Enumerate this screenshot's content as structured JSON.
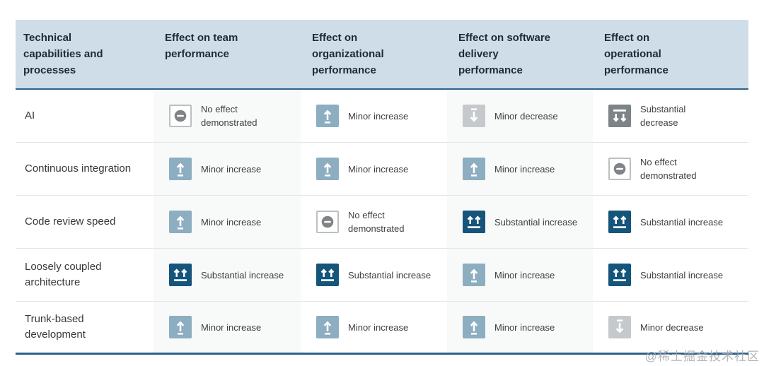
{
  "chart_data": {
    "type": "table",
    "columns": [
      "Technical capabilities and processes",
      "Effect on team performance",
      "Effect on organizational performance",
      "Effect on software delivery performance",
      "Effect on operational performance"
    ],
    "rows": [
      {
        "capability": "AI",
        "effects": [
          "no-effect",
          "minor-increase",
          "minor-decrease",
          "substantial-decrease"
        ]
      },
      {
        "capability": "Continuous integration",
        "effects": [
          "minor-increase",
          "minor-increase",
          "minor-increase",
          "no-effect"
        ]
      },
      {
        "capability": "Code review speed",
        "effects": [
          "minor-increase",
          "no-effect",
          "substantial-increase",
          "substantial-increase"
        ]
      },
      {
        "capability": "Loosely coupled architecture",
        "effects": [
          "substantial-increase",
          "substantial-increase",
          "minor-increase",
          "substantial-increase"
        ]
      },
      {
        "capability": "Trunk-based development",
        "effects": [
          "minor-increase",
          "minor-increase",
          "minor-increase",
          "minor-decrease"
        ]
      }
    ],
    "legend_position": "none",
    "grid": "row-dividers"
  },
  "effect_types": {
    "no-effect": {
      "label": "No effect demonstrated",
      "icon": "no-effect-icon",
      "bg": "#ffffff",
      "border": "#bcc0c2",
      "fg": "#7e8488"
    },
    "minor-increase": {
      "label": "Minor increase",
      "icon": "arrow-up-icon",
      "bg": "#8dadc1"
    },
    "substantial-increase": {
      "label": "Substantial increase",
      "icon": "double-arrow-up-icon",
      "bg": "#15547b"
    },
    "minor-decrease": {
      "label": "Minor decrease",
      "icon": "arrow-down-icon",
      "bg": "#c6c9cb"
    },
    "substantial-decrease": {
      "label": "Substantial decrease",
      "icon": "double-arrow-down-icon",
      "bg": "#7d8387"
    }
  },
  "colors": {
    "header_bg": "#cfdde8",
    "header_text": "#1f2b33",
    "accent_line": "#2e618a",
    "row_divider": "#e4e5e7",
    "stripe_bg": "#f8f9f9",
    "cell_text": "#3c4043",
    "capability_text": "#35393c"
  },
  "watermark": {
    "text": "@稀土掘金技术社区"
  }
}
